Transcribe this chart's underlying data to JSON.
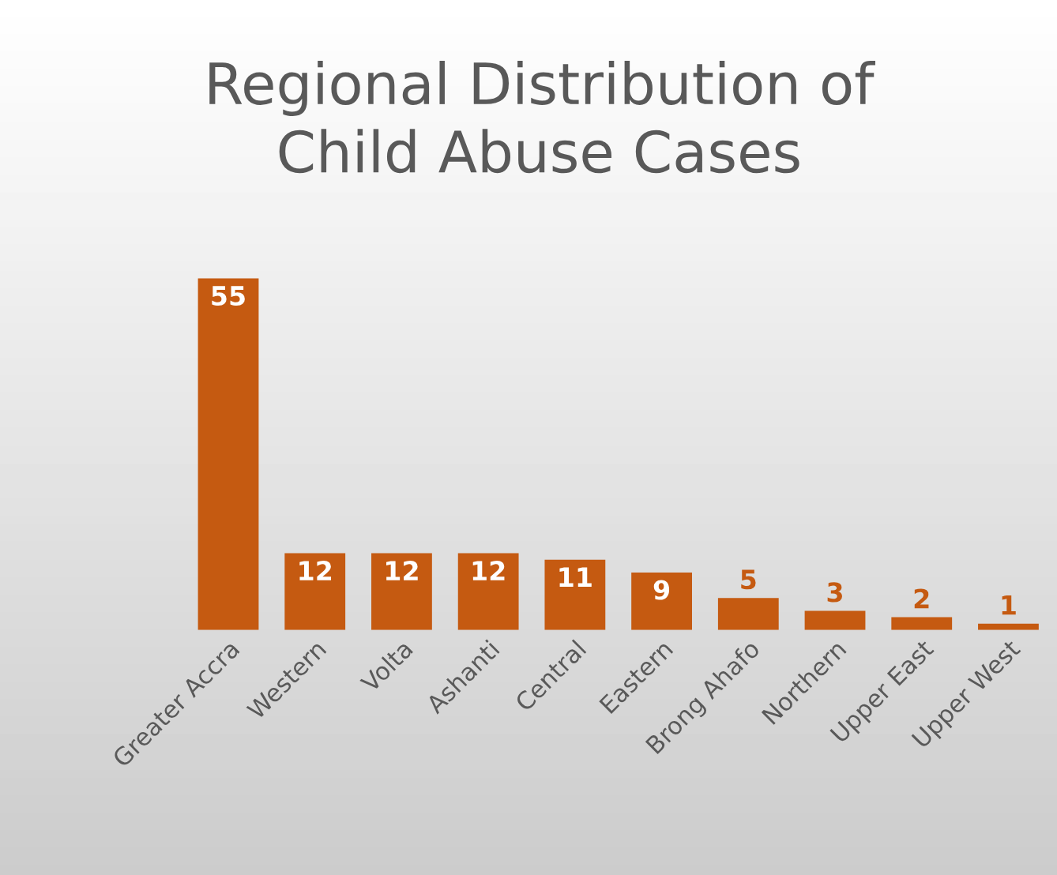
{
  "chart_data": {
    "type": "bar",
    "title": "Regional Distribution of\nChild Abuse Cases",
    "categories": [
      "Greater Accra",
      "Western",
      "Volta",
      "Ashanti",
      "Central",
      "Eastern",
      "Brong Ahafo",
      "Northern",
      "Upper East",
      "Upper West"
    ],
    "values": [
      55,
      12,
      12,
      12,
      11,
      9,
      5,
      3,
      2,
      1
    ],
    "color": "#c55a11",
    "data_labels": true,
    "grid": false,
    "legend": false
  }
}
